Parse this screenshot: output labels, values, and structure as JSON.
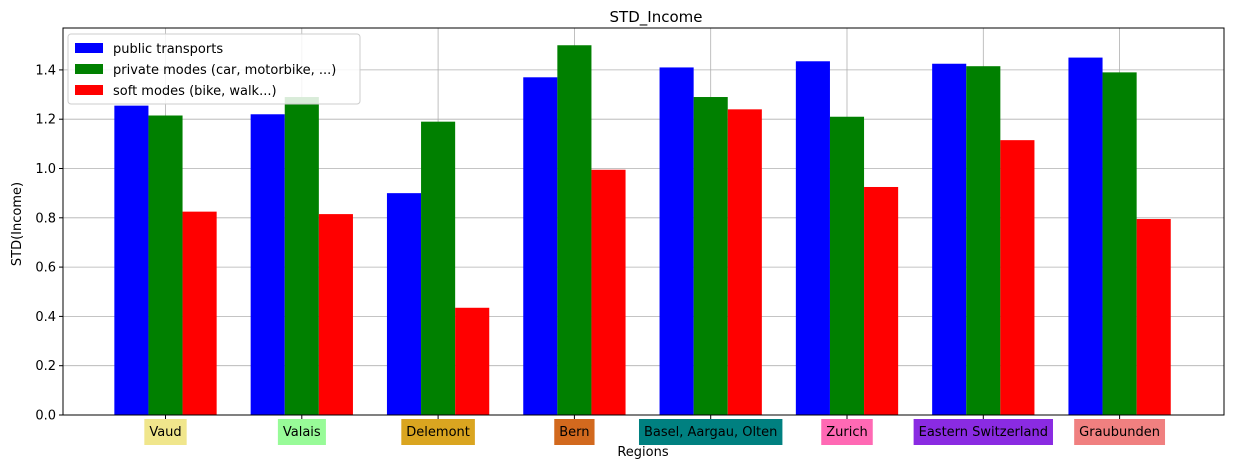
{
  "chart_data": {
    "type": "bar",
    "title": "STD_Income",
    "xlabel": "Regions",
    "ylabel": "STD(Income)",
    "ylim": [
      0,
      1.57
    ],
    "yticks": [
      "0.0",
      "0.2",
      "0.4",
      "0.6",
      "0.8",
      "1.0",
      "1.2",
      "1.4"
    ],
    "grid": true,
    "legend_position": "top-left",
    "categories": [
      "Vaud",
      "Valais",
      "Delemont",
      "Bern",
      "Basel, Aargau, Olten",
      "Zurich",
      "Eastern Switzerland",
      "Graubunden"
    ],
    "category_colors": [
      "#f0e68c",
      "#98fb98",
      "#daa520",
      "#d2691e",
      "#008080",
      "#ff69b4",
      "#8a2be2",
      "#f08080"
    ],
    "series": [
      {
        "name": "public transports",
        "color": "#0000ff",
        "values": [
          1.255,
          1.22,
          0.9,
          1.37,
          1.41,
          1.435,
          1.425,
          1.45
        ]
      },
      {
        "name": "private modes (car, motorbike, ...)",
        "color": "#008000",
        "values": [
          1.215,
          1.29,
          1.19,
          1.5,
          1.29,
          1.21,
          1.415,
          1.39
        ]
      },
      {
        "name": "soft modes (bike, walk...)",
        "color": "#ff0000",
        "values": [
          0.825,
          0.815,
          0.435,
          0.995,
          1.24,
          0.925,
          1.115,
          0.795
        ]
      }
    ]
  }
}
